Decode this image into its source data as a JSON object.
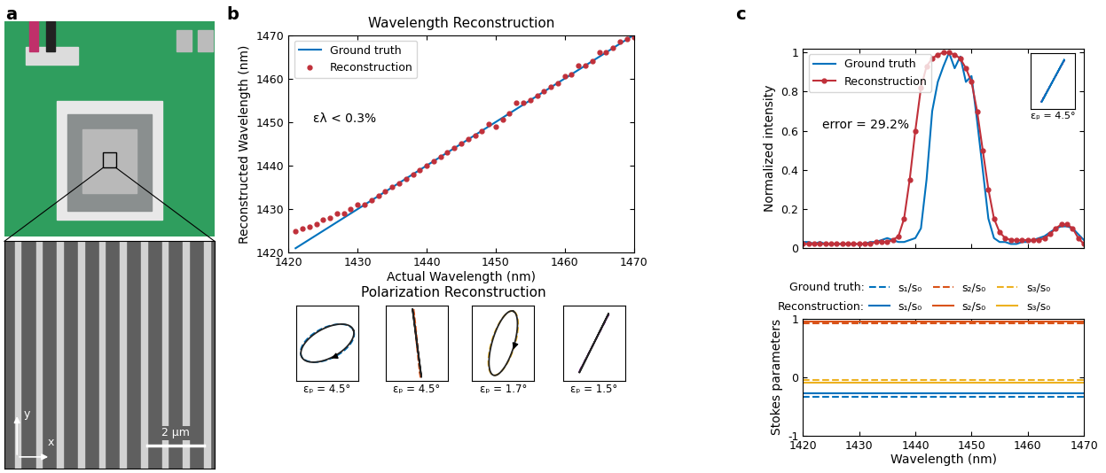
{
  "panels": [
    "a",
    "b",
    "c"
  ],
  "photo": {
    "scale_bar": "2 µm",
    "axis_x": "x",
    "axis_y": "y"
  },
  "polarization_title": "Polarization Reconstruction",
  "chart_data": [
    {
      "type": "line",
      "title": "Wavelength Reconstruction",
      "x_label": "Actual Wavelength (nm)",
      "y_label": "Reconstructed Wavelength (nm)",
      "xlim": [
        1420,
        1470
      ],
      "ylim": [
        1420,
        1470
      ],
      "xticks": [
        1420,
        1430,
        1440,
        1450,
        1460,
        1470
      ],
      "yticks": [
        1420,
        1430,
        1440,
        1450,
        1460,
        1470
      ],
      "legend": "upper left",
      "annotation": "ελ < 0.3%",
      "series": [
        {
          "name": "Ground truth",
          "color": "#0072BD",
          "line_style": "solid",
          "x": [
            1421,
            1470
          ],
          "values": [
            1421,
            1470
          ]
        },
        {
          "name": "Reconstruction",
          "color": "#C0303A",
          "line_style": "none",
          "marker": "o",
          "x": [
            1421,
            1422,
            1423,
            1424,
            1425,
            1426,
            1427,
            1428,
            1429,
            1430,
            1431,
            1432,
            1433,
            1434,
            1435,
            1436,
            1437,
            1438,
            1439,
            1440,
            1441,
            1442,
            1443,
            1444,
            1445,
            1446,
            1447,
            1448,
            1449,
            1450,
            1451,
            1452,
            1453,
            1454,
            1455,
            1456,
            1457,
            1458,
            1459,
            1460,
            1461,
            1462,
            1463,
            1464,
            1465,
            1466,
            1467,
            1468,
            1469,
            1470
          ],
          "values": [
            1425.0,
            1425.5,
            1426.0,
            1426.5,
            1427.5,
            1428.0,
            1429.0,
            1429.0,
            1430.0,
            1431.0,
            1431.0,
            1432.0,
            1433.0,
            1434.0,
            1435.0,
            1436.0,
            1437.0,
            1438.0,
            1439.0,
            1440.0,
            1441.0,
            1442.0,
            1443.0,
            1444.0,
            1445.0,
            1446.0,
            1447.0,
            1448.0,
            1449.5,
            1449.0,
            1450.5,
            1452.0,
            1454.5,
            1454.5,
            1455.0,
            1456.0,
            1457.0,
            1458.0,
            1459.0,
            1460.5,
            1461.0,
            1463.0,
            1463.0,
            1464.0,
            1466.0,
            1466.0,
            1467.0,
            1468.5,
            1469.0,
            1469.5
          ]
        }
      ]
    },
    {
      "type": "ellipse",
      "label": "εₚ = 4.5°",
      "xlim": [
        -1.1,
        1.1
      ],
      "ylim": [
        -1.1,
        1.1
      ],
      "tick_labels": false,
      "series": [
        {
          "color": "#0072BD",
          "line_style": "dashed",
          "azimuth_deg": 20,
          "ellipticity_deg": -25
        },
        {
          "color": "#222222",
          "line_style": "solid",
          "azimuth_deg": 22,
          "ellipticity_deg": -24
        }
      ]
    },
    {
      "type": "ellipse",
      "label": "εₚ = 4.5°",
      "xlim": [
        -1.1,
        1.1
      ],
      "ylim": [
        -1.1,
        1.1
      ],
      "tick_labels": false,
      "series": [
        {
          "color": "#D95319",
          "line_style": "dashed",
          "azimuth_deg": 97,
          "ellipticity_deg": -1
        },
        {
          "color": "#222222",
          "line_style": "solid",
          "azimuth_deg": 99,
          "ellipticity_deg": 0
        }
      ]
    },
    {
      "type": "ellipse",
      "label": "εₚ = 1.7°",
      "xlim": [
        -1.1,
        1.1
      ],
      "ylim": [
        -1.1,
        1.1
      ],
      "tick_labels": false,
      "series": [
        {
          "color": "#EDB120",
          "line_style": "dashed",
          "azimuth_deg": 68,
          "ellipticity_deg": -22
        },
        {
          "color": "#222222",
          "line_style": "solid",
          "azimuth_deg": 69,
          "ellipticity_deg": -21
        }
      ]
    },
    {
      "type": "ellipse",
      "label": "εₚ = 1.5°",
      "xlim": [
        -1.1,
        1.1
      ],
      "ylim": [
        -1.1,
        1.1
      ],
      "tick_labels": false,
      "series": [
        {
          "color": "#7E2F8E",
          "line_style": "dashed",
          "azimuth_deg": 58,
          "ellipticity_deg": 0
        },
        {
          "color": "#222222",
          "line_style": "solid",
          "azimuth_deg": 59,
          "ellipticity_deg": 0
        }
      ]
    },
    {
      "type": "line",
      "y_label": "Normalized intensity",
      "xlim": [
        1420,
        1470
      ],
      "ylim": [
        0,
        1.02
      ],
      "xticks": [
        1420,
        1430,
        1440,
        1450,
        1460,
        1470
      ],
      "yticks": [
        0,
        0.2,
        0.4,
        0.6,
        0.8,
        1
      ],
      "tick_labels": "y",
      "legend": "upper left",
      "annotation": "error = 29.2%",
      "x": [
        1420,
        1421,
        1422,
        1423,
        1424,
        1425,
        1426,
        1427,
        1428,
        1429,
        1430,
        1431,
        1432,
        1433,
        1434,
        1435,
        1436,
        1437,
        1438,
        1439,
        1440,
        1441,
        1442,
        1443,
        1444,
        1445,
        1446,
        1447,
        1448,
        1449,
        1450,
        1451,
        1452,
        1453,
        1454,
        1455,
        1456,
        1457,
        1458,
        1459,
        1460,
        1461,
        1462,
        1463,
        1464,
        1465,
        1466,
        1467,
        1468,
        1469,
        1470
      ],
      "series": [
        {
          "name": "Ground truth",
          "color": "#0072BD",
          "line_style": "solid",
          "values": [
            0.03,
            0.03,
            0.02,
            0.03,
            0.02,
            0.02,
            0.02,
            0.02,
            0.02,
            0.02,
            0.02,
            0.02,
            0.03,
            0.03,
            0.04,
            0.05,
            0.04,
            0.03,
            0.03,
            0.04,
            0.05,
            0.1,
            0.35,
            0.7,
            0.85,
            0.93,
            1.0,
            0.92,
            0.98,
            0.85,
            0.88,
            0.65,
            0.4,
            0.15,
            0.05,
            0.03,
            0.03,
            0.02,
            0.02,
            0.03,
            0.03,
            0.04,
            0.05,
            0.06,
            0.08,
            0.1,
            0.11,
            0.11,
            0.1,
            0.07,
            0.04
          ]
        },
        {
          "name": "Reconstruction",
          "color": "#C0303A",
          "line_style": "solid",
          "marker": "o",
          "values": [
            0.02,
            0.02,
            0.02,
            0.02,
            0.02,
            0.02,
            0.02,
            0.02,
            0.02,
            0.02,
            0.02,
            0.02,
            0.02,
            0.03,
            0.03,
            0.03,
            0.04,
            0.06,
            0.15,
            0.35,
            0.6,
            0.82,
            0.93,
            0.97,
            0.99,
            1.0,
            1.0,
            0.99,
            0.97,
            0.92,
            0.85,
            0.7,
            0.5,
            0.3,
            0.15,
            0.08,
            0.05,
            0.04,
            0.04,
            0.04,
            0.04,
            0.04,
            0.04,
            0.05,
            0.07,
            0.1,
            0.12,
            0.12,
            0.1,
            0.05,
            0.02
          ]
        }
      ]
    },
    {
      "type": "ellipse",
      "label": "εₚ = 4.5°",
      "xlim": [
        -1.1,
        1.1
      ],
      "ylim": [
        -1.1,
        1.1
      ],
      "tick_labels": false,
      "series": [
        {
          "color": "#7E2F8E",
          "line_style": "dashed",
          "azimuth_deg": 55,
          "ellipticity_deg": 0
        },
        {
          "color": "#0072BD",
          "line_style": "solid",
          "azimuth_deg": 56,
          "ellipticity_deg": 0
        }
      ]
    },
    {
      "type": "line",
      "x_label": "Wavelength (nm)",
      "y_label": "Stokes parameters",
      "xlim": [
        1420,
        1470
      ],
      "ylim": [
        -1,
        1
      ],
      "xticks": [
        1420,
        1430,
        1440,
        1450,
        1460,
        1470
      ],
      "yticks": [
        -1,
        0,
        1
      ],
      "legend_groups": [
        {
          "title": "Ground truth:",
          "line_style": "dashed"
        },
        {
          "title": "Reconstruction:",
          "line_style": "solid"
        }
      ],
      "x": [
        1420,
        1470
      ],
      "series": [
        {
          "name": "s₁/s₀",
          "color": "#0072BD",
          "line_style": "dashed",
          "values": [
            -0.33,
            -0.33
          ]
        },
        {
          "name": "s₂/s₀",
          "color": "#D95319",
          "line_style": "dashed",
          "values": [
            0.93,
            0.93
          ]
        },
        {
          "name": "s₃/s₀",
          "color": "#EDB120",
          "line_style": "dashed",
          "values": [
            -0.05,
            -0.05
          ]
        },
        {
          "name": "s₁/s₀",
          "color": "#0072BD",
          "line_style": "solid",
          "values": [
            -0.28,
            -0.28
          ]
        },
        {
          "name": "s₂/s₀",
          "color": "#D95319",
          "line_style": "solid",
          "values": [
            0.95,
            0.95
          ]
        },
        {
          "name": "s₃/s₀",
          "color": "#EDB120",
          "line_style": "solid",
          "values": [
            -0.1,
            -0.1
          ]
        }
      ]
    }
  ]
}
